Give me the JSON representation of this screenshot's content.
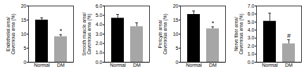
{
  "chart_data": [
    {
      "type": "bar",
      "ylabel": [
        "Endothelial area/",
        "Cavernous area (%)"
      ],
      "categories": [
        "Normal",
        "DM"
      ],
      "values": [
        15,
        9.1
      ],
      "errors": [
        0.8,
        0.7
      ],
      "colors": [
        "#000000",
        "#a6a6a6"
      ],
      "ylim": [
        0,
        20
      ],
      "yticks": [
        0,
        5,
        10,
        15,
        20
      ],
      "annotations": [
        {
          "category": "DM",
          "text": "*"
        }
      ]
    },
    {
      "type": "bar",
      "ylabel": [
        "Smooth muscle area/",
        "Cavernous area (%)"
      ],
      "categories": [
        "Normal",
        "DM"
      ],
      "values": [
        4.7,
        3.8
      ],
      "errors": [
        0.4,
        0.4
      ],
      "colors": [
        "#000000",
        "#a6a6a6"
      ],
      "ylim": [
        0,
        6
      ],
      "yticks": [
        0,
        1,
        2,
        3,
        4,
        5,
        6
      ],
      "annotations": []
    },
    {
      "type": "bar",
      "ylabel": [
        "Pericyte area/",
        "Cavernous area (%)"
      ],
      "categories": [
        "Normal",
        "DM"
      ],
      "values": [
        17,
        11.9
      ],
      "errors": [
        1.2,
        0.7
      ],
      "colors": [
        "#000000",
        "#a6a6a6"
      ],
      "ylim": [
        0,
        20
      ],
      "yticks": [
        0,
        5,
        10,
        15,
        20
      ],
      "annotations": [
        {
          "category": "DM",
          "text": "*"
        }
      ]
    },
    {
      "type": "bar",
      "ylabel": [
        "Nerve fiber area/",
        "Cavernous area (%)"
      ],
      "categories": [
        "Normal",
        "DM"
      ],
      "values": [
        5.1,
        2.3
      ],
      "errors": [
        1.0,
        0.5
      ],
      "colors": [
        "#000000",
        "#a6a6a6"
      ],
      "ylim": [
        0,
        7
      ],
      "yticks": [
        0,
        1,
        2,
        3,
        4,
        5,
        6,
        7
      ],
      "annotations": [
        {
          "category": "DM",
          "text": "#"
        }
      ]
    }
  ]
}
